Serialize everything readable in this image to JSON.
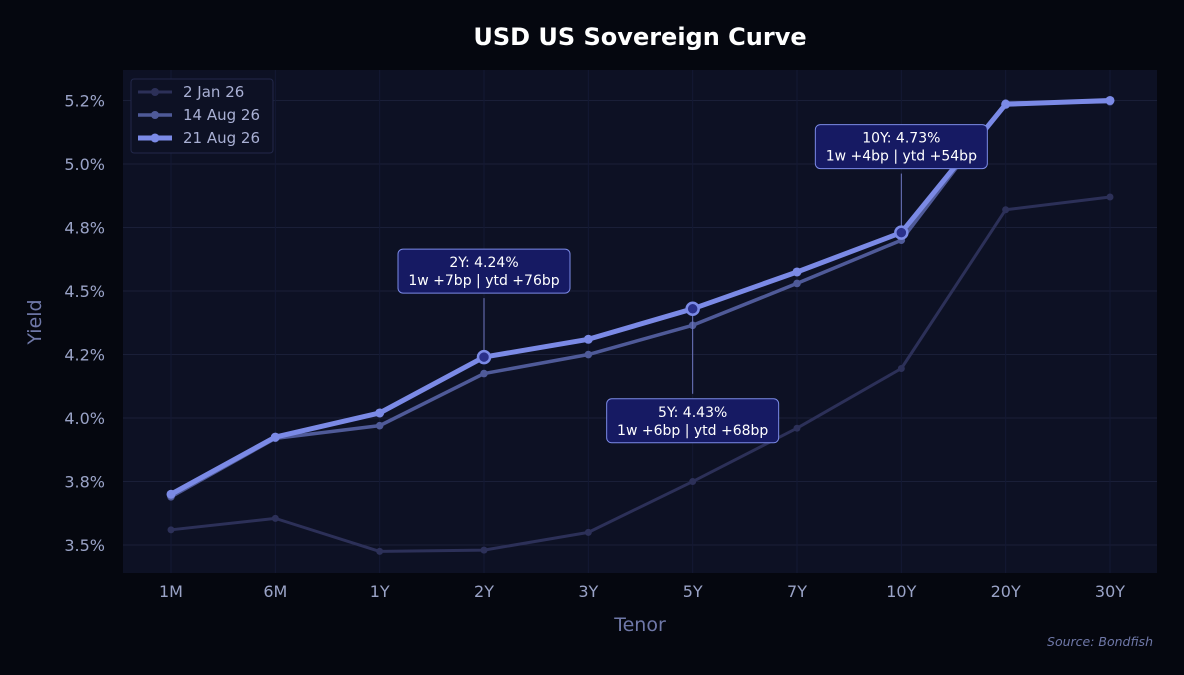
{
  "chart_data": {
    "type": "line",
    "title": "USD US Sovereign Curve",
    "xlabel": "Tenor",
    "ylabel": "Yield",
    "categories": [
      "1M",
      "6M",
      "1Y",
      "2Y",
      "3Y",
      "5Y",
      "7Y",
      "10Y",
      "20Y",
      "30Y"
    ],
    "ylim": [
      3.39,
      5.37
    ],
    "yticks": [
      3.5,
      3.75,
      4.0,
      4.25,
      4.5,
      4.75,
      5.0,
      5.25
    ],
    "ytick_labels": [
      "3.5%",
      "3.8%",
      "4.0%",
      "4.2%",
      "4.5%",
      "4.8%",
      "5.0%",
      "5.2%"
    ],
    "grid": true,
    "legend_position": "top-left",
    "series": [
      {
        "name": "2 Jan 26",
        "color": "#2c3058",
        "values": [
          3.56,
          3.605,
          3.475,
          3.48,
          3.55,
          3.75,
          3.96,
          4.195,
          4.82,
          4.87
        ]
      },
      {
        "name": "14 Aug 26",
        "color": "#4f5a98",
        "values": [
          3.69,
          3.92,
          3.97,
          4.175,
          4.25,
          4.365,
          4.53,
          4.7,
          5.24,
          5.245
        ]
      },
      {
        "name": "21 Aug 26",
        "color": "#7b8ae6",
        "values": [
          3.7,
          3.925,
          4.02,
          4.24,
          4.31,
          4.43,
          4.575,
          4.73,
          5.235,
          5.25
        ]
      }
    ],
    "annotations": [
      {
        "category": "2Y",
        "line1": "2Y: 4.24%",
        "line2": "1w +7bp | ytd +76bp"
      },
      {
        "category": "5Y",
        "line1": "5Y: 4.43%",
        "line2": "1w +6bp | ytd +68bp"
      },
      {
        "category": "10Y",
        "line1": "10Y: 4.73%",
        "line2": "1w +4bp | ytd +54bp"
      }
    ],
    "source": "Source: Bondfish"
  }
}
